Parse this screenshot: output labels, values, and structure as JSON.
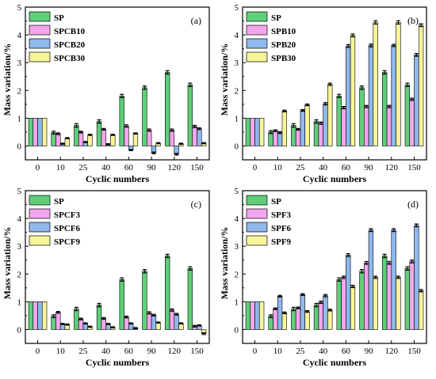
{
  "figure_colors": {
    "SP": "#5fcf7a",
    "B10": "#f4a6ec",
    "B20": "#8fb8ec",
    "B30": "#f7f49a"
  },
  "chart_data": [
    {
      "type": "bar",
      "panel": "(a)",
      "xlabel": "Cyclic numbers",
      "ylabel": "Mass variation/%",
      "ylim": [
        -0.5,
        5
      ],
      "yticks": [
        0,
        1,
        2,
        3,
        4,
        5
      ],
      "categories": [
        "0",
        "10",
        "25",
        "40",
        "60",
        "90",
        "120",
        "150"
      ],
      "legend": "top-left",
      "series": [
        {
          "name": "SP",
          "color": "#5fcf7a",
          "values": [
            1.0,
            0.48,
            0.74,
            0.88,
            1.8,
            2.1,
            2.65,
            2.2
          ],
          "errors": [
            0,
            0.05,
            0.06,
            0.06,
            0.06,
            0.06,
            0.06,
            0.06
          ]
        },
        {
          "name": "SPCB10",
          "color": "#f4a6ec",
          "values": [
            1.0,
            0.44,
            0.5,
            0.6,
            0.72,
            0.57,
            0.57,
            0.7
          ],
          "errors": [
            0,
            0.03,
            0.03,
            0.03,
            0.04,
            0.04,
            0.04,
            0.04
          ]
        },
        {
          "name": "SPCB20",
          "color": "#8fb8ec",
          "values": [
            1.0,
            0.08,
            0.14,
            0.06,
            -0.15,
            -0.25,
            -0.3,
            0.62
          ],
          "errors": [
            0,
            0.02,
            0.02,
            0.02,
            0.02,
            0.03,
            0.03,
            0.03
          ]
        },
        {
          "name": "SPCB30",
          "color": "#f7f49a",
          "values": [
            1.0,
            0.28,
            0.4,
            0.4,
            0.45,
            0.1,
            0.08,
            0.1
          ],
          "errors": [
            0,
            0.02,
            0.02,
            0.02,
            0.02,
            0.02,
            0.02,
            0.02
          ]
        }
      ]
    },
    {
      "type": "bar",
      "panel": "(b)",
      "xlabel": "Cyclic numbers",
      "ylabel": "Mass variation/%",
      "ylim": [
        -0.5,
        5
      ],
      "yticks": [
        0,
        1,
        2,
        3,
        4,
        5
      ],
      "categories": [
        "0",
        "10",
        "25",
        "40",
        "60",
        "90",
        "120",
        "150"
      ],
      "legend": "top-left",
      "series": [
        {
          "name": "SP",
          "color": "#5fcf7a",
          "values": [
            1.0,
            0.5,
            0.74,
            0.88,
            1.8,
            2.1,
            2.65,
            2.2
          ],
          "errors": [
            0,
            0.05,
            0.06,
            0.06,
            0.06,
            0.06,
            0.06,
            0.06
          ]
        },
        {
          "name": "SPB10",
          "color": "#f4a6ec",
          "values": [
            1.0,
            0.55,
            0.6,
            0.82,
            1.38,
            1.42,
            1.42,
            1.68
          ],
          "errors": [
            0,
            0.03,
            0.03,
            0.04,
            0.04,
            0.04,
            0.04,
            0.04
          ]
        },
        {
          "name": "SPB20",
          "color": "#8fb8ec",
          "values": [
            1.0,
            0.48,
            1.28,
            1.52,
            3.6,
            3.62,
            3.62,
            3.28
          ],
          "errors": [
            0,
            0.03,
            0.03,
            0.04,
            0.05,
            0.05,
            0.04,
            0.05
          ]
        },
        {
          "name": "SPB30",
          "color": "#f7f49a",
          "values": [
            1.0,
            1.26,
            1.48,
            2.22,
            3.98,
            4.45,
            4.45,
            4.35
          ],
          "errors": [
            0,
            0.03,
            0.03,
            0.04,
            0.05,
            0.06,
            0.06,
            0.05
          ]
        }
      ]
    },
    {
      "type": "bar",
      "panel": "(c)",
      "xlabel": "Cyclic numbers",
      "ylabel": "Mass variation/%",
      "ylim": [
        -0.5,
        5
      ],
      "yticks": [
        0,
        1,
        2,
        3,
        4,
        5
      ],
      "categories": [
        "0",
        "10",
        "25",
        "40",
        "60",
        "90",
        "120",
        "150"
      ],
      "legend": "top-left",
      "series": [
        {
          "name": "SP",
          "color": "#5fcf7a",
          "values": [
            1.0,
            0.48,
            0.74,
            0.88,
            1.8,
            2.1,
            2.65,
            2.2
          ],
          "errors": [
            0,
            0.05,
            0.06,
            0.06,
            0.06,
            0.06,
            0.06,
            0.06
          ]
        },
        {
          "name": "SPCF3",
          "color": "#f4a6ec",
          "values": [
            1.0,
            0.62,
            0.38,
            0.4,
            0.45,
            0.6,
            0.7,
            0.12
          ],
          "errors": [
            0,
            0.03,
            0.03,
            0.03,
            0.03,
            0.04,
            0.04,
            0.03
          ]
        },
        {
          "name": "SPCF6",
          "color": "#8fb8ec",
          "values": [
            1.0,
            0.2,
            0.22,
            0.2,
            0.22,
            0.52,
            0.55,
            0.15
          ],
          "errors": [
            0,
            0.02,
            0.02,
            0.02,
            0.02,
            0.03,
            0.03,
            0.02
          ]
        },
        {
          "name": "SPCF9",
          "color": "#f7f49a",
          "values": [
            1.0,
            0.18,
            0.1,
            0.08,
            0.05,
            0.25,
            0.22,
            -0.15
          ],
          "errors": [
            0,
            0.02,
            0.02,
            0.02,
            0.02,
            0.02,
            0.02,
            0.03
          ]
        }
      ]
    },
    {
      "type": "bar",
      "panel": "(d)",
      "xlabel": "Cyclic numbers",
      "ylabel": "Mass variation/%",
      "ylim": [
        -0.5,
        5
      ],
      "yticks": [
        0,
        1,
        2,
        3,
        4,
        5
      ],
      "categories": [
        "0",
        "10",
        "25",
        "40",
        "60",
        "90",
        "120",
        "150"
      ],
      "legend": "top-left",
      "series": [
        {
          "name": "SP",
          "color": "#5fcf7a",
          "values": [
            1.0,
            0.48,
            0.74,
            0.88,
            1.8,
            2.1,
            2.65,
            2.2
          ],
          "errors": [
            0,
            0.05,
            0.06,
            0.06,
            0.06,
            0.06,
            0.06,
            0.06
          ]
        },
        {
          "name": "SPF3",
          "color": "#f4a6ec",
          "values": [
            1.0,
            0.75,
            0.78,
            0.98,
            1.88,
            2.4,
            2.4,
            2.45
          ],
          "errors": [
            0,
            0.03,
            0.03,
            0.04,
            0.04,
            0.05,
            0.05,
            0.05
          ]
        },
        {
          "name": "SPF6",
          "color": "#8fb8ec",
          "values": [
            1.0,
            1.2,
            1.26,
            1.22,
            2.68,
            3.58,
            3.58,
            3.75
          ],
          "errors": [
            0,
            0.03,
            0.03,
            0.04,
            0.05,
            0.05,
            0.05,
            0.05
          ]
        },
        {
          "name": "SPF9",
          "color": "#f7f49a",
          "values": [
            1.0,
            0.6,
            0.65,
            0.7,
            1.55,
            1.88,
            1.88,
            1.4
          ],
          "errors": [
            0,
            0.03,
            0.03,
            0.03,
            0.04,
            0.04,
            0.04,
            0.04
          ]
        }
      ]
    }
  ]
}
